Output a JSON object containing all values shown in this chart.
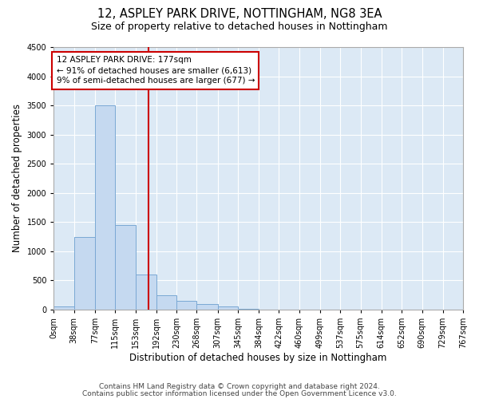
{
  "title": "12, ASPLEY PARK DRIVE, NOTTINGHAM, NG8 3EA",
  "subtitle": "Size of property relative to detached houses in Nottingham",
  "xlabel": "Distribution of detached houses by size in Nottingham",
  "ylabel": "Number of detached properties",
  "bin_edges": [
    0,
    38,
    77,
    115,
    153,
    192,
    230,
    268,
    307,
    345,
    384,
    422,
    460,
    499,
    537,
    575,
    614,
    652,
    690,
    729,
    767
  ],
  "bar_heights": [
    50,
    1250,
    3500,
    1450,
    600,
    250,
    150,
    100,
    50,
    10,
    5,
    1,
    0,
    0,
    0,
    0,
    0,
    0,
    0,
    1
  ],
  "bar_color": "#c5d9f0",
  "bar_edgecolor": "#7aa8d4",
  "property_size": 177,
  "vline_color": "#cc0000",
  "annotation_line1": "12 ASPLEY PARK DRIVE: 177sqm",
  "annotation_line2": "← 91% of detached houses are smaller (6,613)",
  "annotation_line3": "9% of semi-detached houses are larger (677) →",
  "annotation_box_edgecolor": "#cc0000",
  "ylim": [
    0,
    4500
  ],
  "yticks": [
    0,
    500,
    1000,
    1500,
    2000,
    2500,
    3000,
    3500,
    4000,
    4500
  ],
  "bg_color": "#ffffff",
  "plot_bg_color": "#dce9f5",
  "grid_color": "#ffffff",
  "footer1": "Contains HM Land Registry data © Crown copyright and database right 2024.",
  "footer2": "Contains public sector information licensed under the Open Government Licence v3.0.",
  "title_fontsize": 10.5,
  "subtitle_fontsize": 9,
  "tick_label_fontsize": 7,
  "axis_label_fontsize": 8.5,
  "annotation_fontsize": 7.5,
  "footer_fontsize": 6.5
}
